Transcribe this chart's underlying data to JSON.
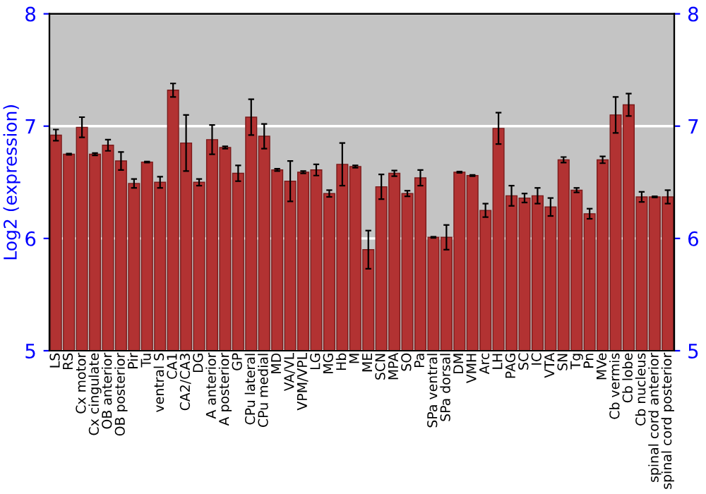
{
  "chart_data": {
    "type": "bar",
    "ylabel": "Log2 (expression)",
    "categories": [
      "LS",
      "RS",
      "Cx motor",
      "Cx cingulate",
      "OB anterior",
      "OB posterior",
      "Pir",
      "Tu",
      "ventral S",
      "CA1",
      "CA2/CA3",
      "DG",
      "A anterior",
      "A posterior",
      "GP",
      "CPu lateral",
      "CPu medial",
      "MD",
      "VA/VL",
      "VPM/VPL",
      "LG",
      "MG",
      "Hb",
      "M",
      "ME",
      "SCN",
      "MPA",
      "SO",
      "Pa",
      "SPa ventral",
      "SPa dorsal",
      "DM",
      "VMH",
      "Arc",
      "LH",
      "PAG",
      "SC",
      "IC",
      "VTA",
      "SN",
      "Tg",
      "Pn",
      "MVe",
      "Cb vermis",
      "Cb lobe",
      "Cb nucleus",
      "spinal cord anterior",
      "spinal cord posterior"
    ],
    "values": [
      6.92,
      6.75,
      6.99,
      6.75,
      6.83,
      6.69,
      6.49,
      6.68,
      6.5,
      7.32,
      6.85,
      6.5,
      6.88,
      6.81,
      6.58,
      7.08,
      6.91,
      6.61,
      6.51,
      6.59,
      6.61,
      6.4,
      6.66,
      6.64,
      5.9,
      6.46,
      6.58,
      6.4,
      6.54,
      6.01,
      6.01,
      6.59,
      6.56,
      6.25,
      6.98,
      6.38,
      6.36,
      6.38,
      6.28,
      6.7,
      6.43,
      6.22,
      6.7,
      7.1,
      7.19,
      6.37,
      6.37,
      6.37
    ],
    "errors": [
      0.05,
      0.005,
      0.09,
      0.01,
      0.05,
      0.08,
      0.04,
      0.005,
      0.05,
      0.06,
      0.25,
      0.03,
      0.13,
      0.01,
      0.07,
      0.16,
      0.11,
      0.01,
      0.18,
      0.01,
      0.05,
      0.03,
      0.19,
      0.01,
      0.17,
      0.11,
      0.025,
      0.025,
      0.07,
      0.005,
      0.11,
      0.005,
      0.005,
      0.06,
      0.14,
      0.09,
      0.04,
      0.07,
      0.08,
      0.025,
      0.02,
      0.045,
      0.03,
      0.16,
      0.1,
      0.045,
      0.005,
      0.06
    ],
    "color": "#b23232",
    "ylim": [
      5,
      8
    ],
    "yticks": [
      5,
      6,
      7,
      8
    ],
    "y2lim": [
      5,
      8
    ],
    "y2ticks": [
      5,
      6,
      7,
      8
    ],
    "grid": "y"
  }
}
